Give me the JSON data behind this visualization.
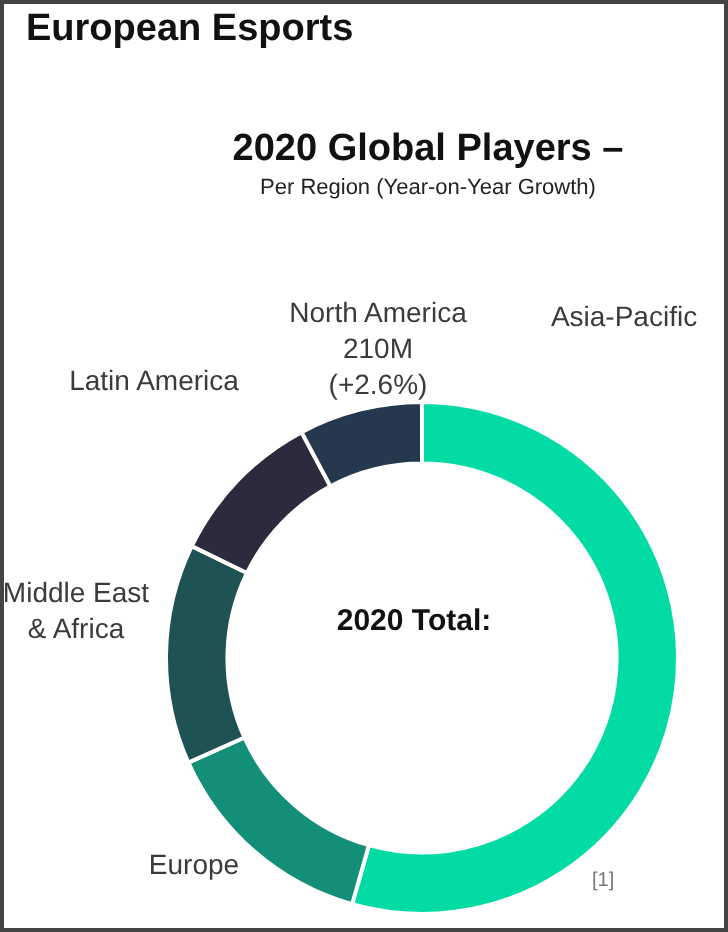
{
  "chart_data": {
    "type": "donut",
    "title": "2020 Global Players –",
    "subtitle": "Per Region (Year-on-Year Growth)",
    "annotations": [
      "European Esports",
      "2020 Total:",
      "[1]",
      {
        "text": "210M (+2.6%)",
        "x": "North America"
      }
    ],
    "categories": [
      "Asia-Pacific",
      "Europe",
      "Middle East & Africa",
      "Latin America",
      "North America"
    ],
    "values": [
      54.4,
      13.9,
      13.9,
      10,
      7.8
    ],
    "colors": [
      "#02dca4",
      "#138f78",
      "#1f5253",
      "#2c2a3d",
      "#25384d"
    ],
    "legend": false
  }
}
